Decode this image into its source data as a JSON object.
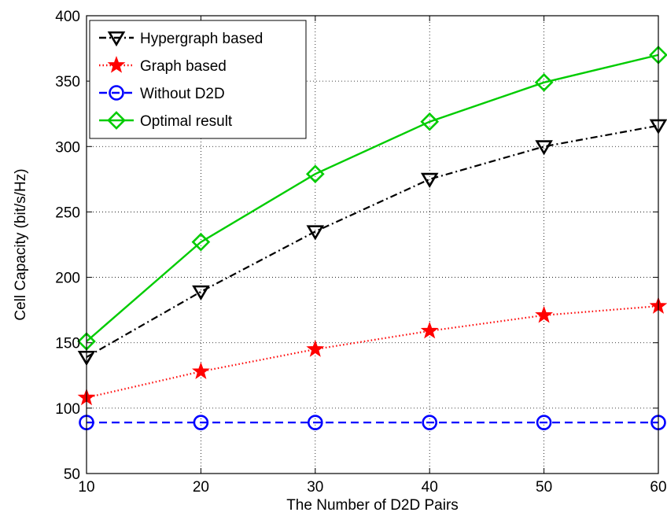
{
  "chart_data": {
    "type": "line",
    "title": "",
    "xlabel": "The Number of D2D Pairs",
    "ylabel": "Cell Capacity (bit/s/Hz)",
    "x": [
      10,
      20,
      30,
      40,
      50,
      60
    ],
    "xlim": [
      10,
      60
    ],
    "ylim": [
      50,
      400
    ],
    "xticks": [
      10,
      20,
      30,
      40,
      50,
      60
    ],
    "yticks": [
      50,
      100,
      150,
      200,
      250,
      300,
      350,
      400
    ],
    "grid": true,
    "legend_position": "top-left",
    "series": [
      {
        "name": "Hypergraph based",
        "values": [
          139,
          189,
          235,
          275,
          300,
          316
        ],
        "color": "#000000",
        "line_style": "dash-dot",
        "marker": "triangle-down"
      },
      {
        "name": "Graph based",
        "values": [
          108,
          128,
          145,
          159,
          171,
          178
        ],
        "color": "#ff0000",
        "line_style": "dotted",
        "marker": "star"
      },
      {
        "name": "Without D2D",
        "values": [
          89,
          89,
          89,
          89,
          89,
          89
        ],
        "color": "#0000ff",
        "line_style": "dashed",
        "marker": "circle"
      },
      {
        "name": "Optimal result",
        "values": [
          151,
          227,
          279,
          319,
          349,
          370
        ],
        "color": "#00cc00",
        "line_style": "solid",
        "marker": "diamond"
      }
    ]
  }
}
